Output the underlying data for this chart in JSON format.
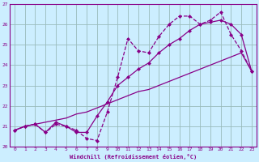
{
  "x_values": [
    0,
    1,
    2,
    3,
    4,
    5,
    6,
    7,
    8,
    9,
    10,
    11,
    12,
    13,
    14,
    15,
    16,
    17,
    18,
    19,
    20,
    21,
    22,
    23
  ],
  "line1_y": [
    20.8,
    21.0,
    21.1,
    20.7,
    21.1,
    21.0,
    20.8,
    20.4,
    20.3,
    21.7,
    23.4,
    25.3,
    24.7,
    24.6,
    25.4,
    26.0,
    26.4,
    26.4,
    26.0,
    26.2,
    26.6,
    25.5,
    24.7,
    23.7
  ],
  "line2_y": [
    20.8,
    21.0,
    21.1,
    20.7,
    21.2,
    21.0,
    20.7,
    20.7,
    21.5,
    22.2,
    23.0,
    23.4,
    23.8,
    24.1,
    24.6,
    25.0,
    25.3,
    25.7,
    26.0,
    26.1,
    26.2,
    26.0,
    25.5,
    23.7
  ],
  "line3_y": [
    20.8,
    21.0,
    21.1,
    21.2,
    21.3,
    21.4,
    21.6,
    21.7,
    21.9,
    22.1,
    22.3,
    22.5,
    22.7,
    22.8,
    23.0,
    23.2,
    23.4,
    23.6,
    23.8,
    24.0,
    24.2,
    24.4,
    24.6,
    23.7
  ],
  "color": "#880088",
  "bg_color": "#cceeff",
  "grid_color": "#99bbbb",
  "ylim": [
    20,
    27
  ],
  "xlim": [
    -0.5,
    23.5
  ],
  "yticks": [
    20,
    21,
    22,
    23,
    24,
    25,
    26,
    27
  ],
  "xticks": [
    0,
    1,
    2,
    3,
    4,
    5,
    6,
    7,
    8,
    9,
    10,
    11,
    12,
    13,
    14,
    15,
    16,
    17,
    18,
    19,
    20,
    21,
    22,
    23
  ],
  "xlabel": "Windchill (Refroidissement éolien,°C)"
}
